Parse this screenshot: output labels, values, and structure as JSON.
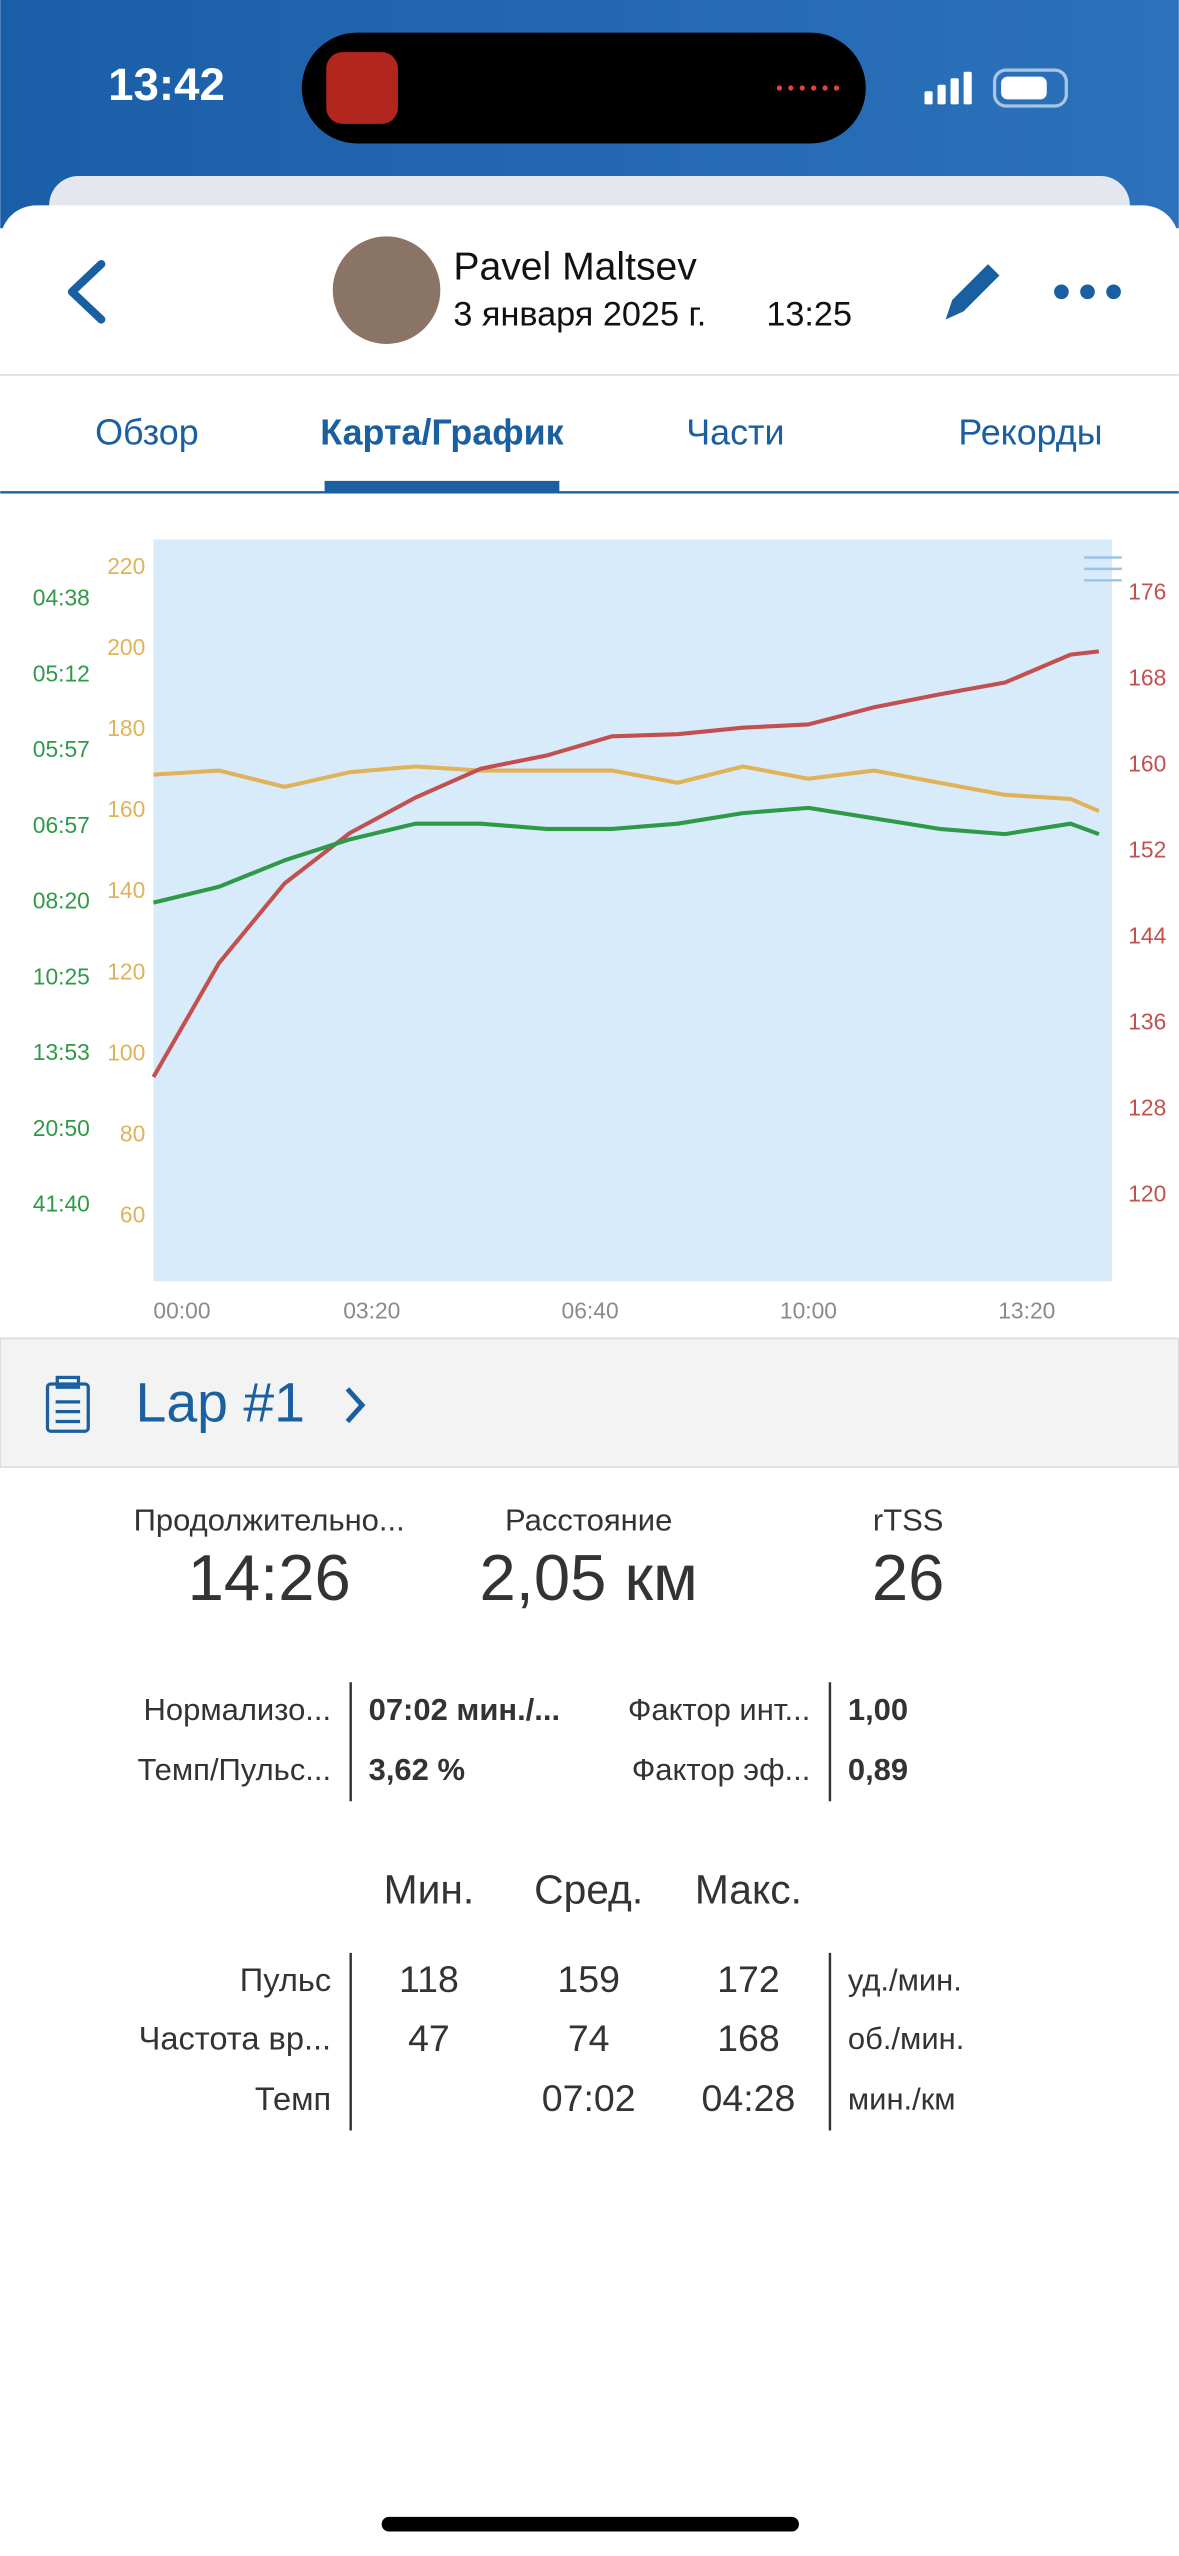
{
  "status": {
    "time": "13:42"
  },
  "header": {
    "name": "Pavel Maltsev",
    "date": "3 января 2025 г.",
    "time": "13:25"
  },
  "tabs": {
    "items": [
      "Обзор",
      "Карта/График",
      "Части",
      "Рекорды"
    ],
    "active": 1
  },
  "chart_data": {
    "type": "line",
    "x": [
      0,
      60,
      120,
      180,
      240,
      300,
      360,
      420,
      480,
      540,
      600,
      660,
      720,
      780,
      840,
      866
    ],
    "xlim": [
      0,
      878
    ],
    "xticks": [
      {
        "value": 0,
        "label": "00:00"
      },
      {
        "value": 200,
        "label": "03:20"
      },
      {
        "value": 400,
        "label": "06:40"
      },
      {
        "value": 600,
        "label": "10:00"
      },
      {
        "value": 800,
        "label": "13:20"
      }
    ],
    "ylim": [
      44,
      227
    ],
    "yticks": [
      60,
      80,
      100,
      120,
      140,
      160,
      180,
      200,
      220
    ],
    "y2lim": [
      112,
      181
    ],
    "y2ticks": [
      120,
      128,
      136,
      144,
      152,
      160,
      168,
      176
    ],
    "y3lim": [
      0,
      14.1
    ],
    "y3ticks": [
      {
        "value": 1.44,
        "label": "41:40"
      },
      {
        "value": 2.88,
        "label": "20:50"
      },
      {
        "value": 4.32,
        "label": "13:53"
      },
      {
        "value": 5.76,
        "label": "10:25"
      },
      {
        "value": 7.2,
        "label": "08:20"
      },
      {
        "value": 8.64,
        "label": "06:57"
      },
      {
        "value": 10.08,
        "label": "05:57"
      },
      {
        "value": 11.52,
        "label": "05:12"
      },
      {
        "value": 12.96,
        "label": "04:38"
      }
    ],
    "series": [
      {
        "color": "#e0b25a",
        "axis": "y",
        "values": [
          169,
          170,
          166,
          169.6,
          171,
          170,
          170,
          170,
          167,
          171,
          168,
          170,
          167,
          164,
          163,
          160
        ]
      },
      {
        "color": "#c2504f",
        "axis": "y2",
        "values": [
          131,
          141.6,
          149,
          153.7,
          157,
          159.7,
          160.9,
          162.7,
          162.9,
          163.5,
          163.8,
          165.4,
          166.6,
          167.7,
          170.3,
          170.6
        ]
      },
      {
        "color": "#2e9a48",
        "axis": "y3",
        "values": [
          7.2,
          7.5,
          8.0,
          8.4,
          8.7,
          8.7,
          8.6,
          8.6,
          8.7,
          8.9,
          9.0,
          8.8,
          8.6,
          8.5,
          8.7,
          8.5
        ]
      }
    ]
  },
  "lap": {
    "title": "Lap #1"
  },
  "summary": [
    {
      "label": "Продолжительно...",
      "value": "14:26"
    },
    {
      "label": "Расстояние",
      "value": "2,05 км"
    },
    {
      "label": "rTSS",
      "value": "26"
    }
  ],
  "metrics": [
    [
      "Нормализо...",
      "07:02 мин./...",
      "Фактор инт...",
      "1,00"
    ],
    [
      "Темп/Пульс...",
      "3,62 %",
      "Фактор эф...",
      "0,89"
    ]
  ],
  "stats": {
    "headers": [
      "Мин.",
      "Сред.",
      "Макс."
    ],
    "rows": [
      {
        "label": "Пульс",
        "values": [
          "118",
          "159",
          "172"
        ],
        "unit": "уд./мин."
      },
      {
        "label": "Частота вр...",
        "values": [
          "47",
          "74",
          "168"
        ],
        "unit": "об./мин."
      },
      {
        "label": "Темп",
        "values": [
          null,
          "07:02",
          "04:28"
        ],
        "unit": "мин./км"
      }
    ]
  }
}
